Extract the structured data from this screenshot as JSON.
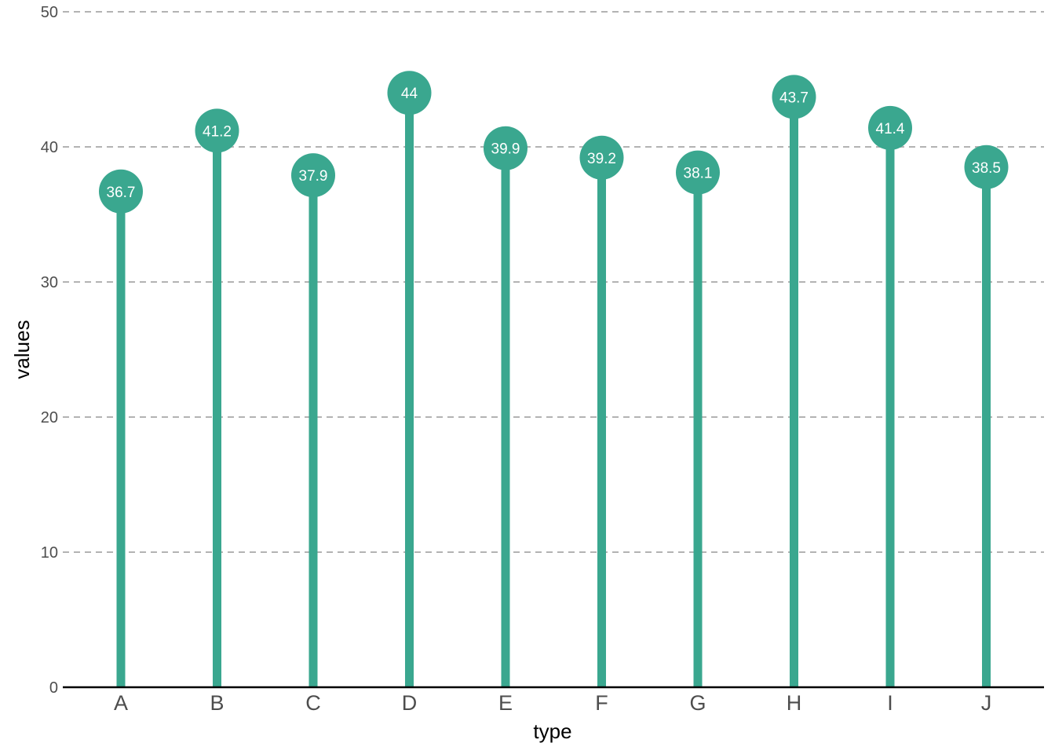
{
  "chart_data": {
    "type": "lollipop",
    "categories": [
      "A",
      "B",
      "C",
      "D",
      "E",
      "F",
      "G",
      "H",
      "I",
      "J"
    ],
    "values": [
      36.7,
      41.2,
      37.9,
      44,
      39.9,
      39.2,
      38.1,
      43.7,
      41.4,
      38.5
    ],
    "data_labels": [
      "36.7",
      "41.2",
      "37.9",
      "44",
      "39.9",
      "39.2",
      "38.1",
      "43.7",
      "41.4",
      "38.5"
    ],
    "xlabel": "type",
    "ylabel": "values",
    "ylim": [
      0,
      50
    ],
    "yticks": [
      0,
      10,
      20,
      30,
      40,
      50
    ],
    "ytick_labels": [
      "0",
      "10",
      "20",
      "30",
      "40",
      "50"
    ],
    "grid": "horizontal dashed",
    "legend": "none",
    "colors": {
      "marker": "#3aa78f",
      "grid": "#b3b3b3",
      "axis": "#000000",
      "label_text": "#ffffff"
    }
  }
}
